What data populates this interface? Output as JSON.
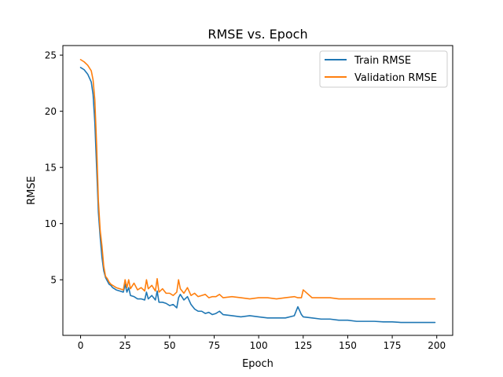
{
  "chart_data": {
    "type": "line",
    "title": "RMSE vs. Epoch",
    "xlabel": "Epoch",
    "ylabel": "RMSE",
    "xlim": [
      -9.95,
      208.95
    ],
    "ylim": [
      0.05,
      25.85
    ],
    "xticks": [
      0,
      25,
      50,
      75,
      100,
      125,
      150,
      175,
      200
    ],
    "yticks": [
      5,
      10,
      15,
      20,
      25
    ],
    "grid": false,
    "legend_position": "upper right",
    "x": [
      0,
      2,
      4,
      6,
      7,
      8,
      9,
      10,
      11,
      12,
      13,
      14,
      15,
      16,
      17,
      18,
      20,
      22,
      24,
      25,
      26,
      27,
      28,
      30,
      32,
      34,
      36,
      37,
      38,
      40,
      42,
      43,
      44,
      46,
      48,
      50,
      52,
      54,
      55,
      56,
      58,
      60,
      62,
      64,
      66,
      68,
      70,
      72,
      74,
      76,
      78,
      80,
      85,
      90,
      95,
      100,
      105,
      110,
      115,
      120,
      122,
      124,
      125,
      130,
      135,
      140,
      145,
      150,
      155,
      160,
      165,
      170,
      175,
      180,
      185,
      190,
      195,
      199
    ],
    "series": [
      {
        "name": "Train RMSE",
        "color": "#1f77b4",
        "values": [
          23.9,
          23.7,
          23.3,
          22.6,
          21.5,
          19.0,
          15.0,
          11.0,
          8.8,
          7.0,
          5.8,
          5.2,
          4.9,
          4.6,
          4.5,
          4.3,
          4.1,
          4.0,
          3.9,
          4.6,
          3.9,
          4.3,
          3.6,
          3.5,
          3.3,
          3.3,
          3.2,
          3.9,
          3.3,
          3.6,
          3.2,
          4.0,
          3.0,
          3.0,
          2.9,
          2.7,
          2.8,
          2.5,
          3.4,
          3.7,
          3.2,
          3.5,
          2.8,
          2.4,
          2.2,
          2.2,
          2.0,
          2.1,
          1.9,
          2.0,
          2.2,
          1.9,
          1.8,
          1.7,
          1.8,
          1.7,
          1.6,
          1.6,
          1.6,
          1.8,
          2.6,
          1.9,
          1.7,
          1.6,
          1.5,
          1.5,
          1.4,
          1.4,
          1.3,
          1.3,
          1.3,
          1.25,
          1.25,
          1.2,
          1.2,
          1.2,
          1.2,
          1.2
        ]
      },
      {
        "name": "Validation RMSE",
        "color": "#ff7f0e",
        "values": [
          24.6,
          24.4,
          24.1,
          23.6,
          22.8,
          21.0,
          17.0,
          12.0,
          9.4,
          8.0,
          6.2,
          5.3,
          5.1,
          4.8,
          4.6,
          4.5,
          4.3,
          4.2,
          4.1,
          5.0,
          4.3,
          5.0,
          4.2,
          4.7,
          4.1,
          4.3,
          4.0,
          5.0,
          4.2,
          4.5,
          4.0,
          5.1,
          3.9,
          4.2,
          3.8,
          3.8,
          3.6,
          3.9,
          5.0,
          4.2,
          3.8,
          4.3,
          3.6,
          3.8,
          3.5,
          3.6,
          3.7,
          3.4,
          3.5,
          3.5,
          3.7,
          3.4,
          3.5,
          3.4,
          3.3,
          3.4,
          3.4,
          3.3,
          3.4,
          3.5,
          3.4,
          3.4,
          4.1,
          3.4,
          3.4,
          3.4,
          3.3,
          3.3,
          3.3,
          3.3,
          3.3,
          3.3,
          3.3,
          3.3,
          3.3,
          3.3,
          3.3,
          3.3
        ]
      }
    ]
  }
}
